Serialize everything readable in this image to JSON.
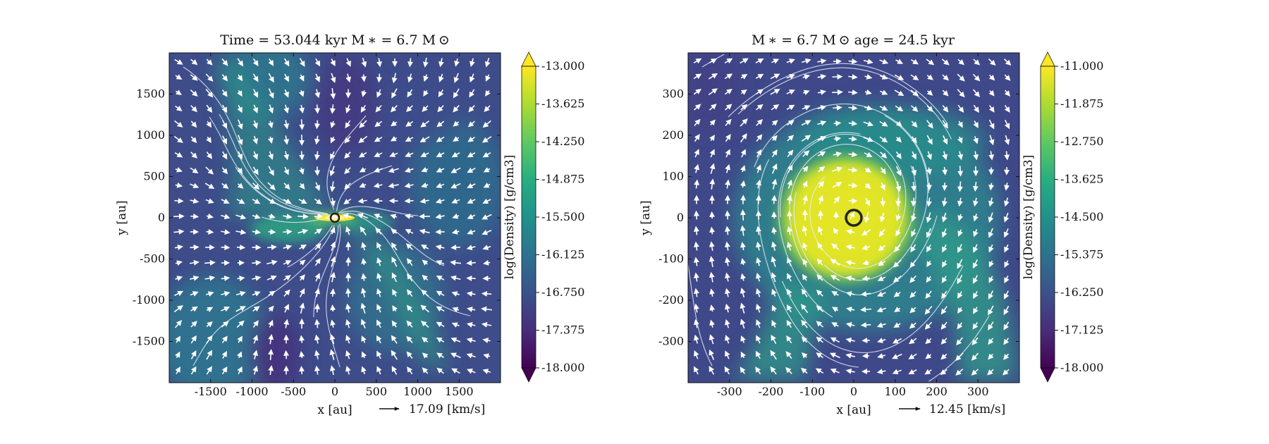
{
  "chart_data": [
    {
      "type": "heatmap",
      "title": "Time = 53.044 kyr    M ∗ = 6.7 M ⊙",
      "xlabel": "x [au]",
      "ylabel": "y [au]",
      "xlim": [
        -2000,
        2000
      ],
      "ylim": [
        -2000,
        2000
      ],
      "xticks": [
        -1500,
        -1000,
        -500,
        0,
        500,
        1000,
        1500
      ],
      "yticks": [
        1500,
        1000,
        500,
        0,
        -500,
        -1000,
        -1500
      ],
      "quiver_key_label": "17.09 [km/s]",
      "colorbar": {
        "label": "log(Density) [g/cm3]",
        "min": -18.0,
        "max": -13.0,
        "ticks": [
          "-13.000",
          "-13.625",
          "-14.250",
          "-14.875",
          "-15.500",
          "-16.125",
          "-16.750",
          "-17.375",
          "-18.000"
        ],
        "colormap": "viridis"
      },
      "star": {
        "x": 0,
        "y": 0
      }
    },
    {
      "type": "heatmap",
      "title": "M ∗ = 6.7 M ⊙           age = 24.5 kyr",
      "xlabel": "x [au]",
      "ylabel": "y [au]",
      "xlim": [
        -400,
        400
      ],
      "ylim": [
        -400,
        400
      ],
      "xticks": [
        -300,
        -200,
        -100,
        0,
        100,
        200,
        300
      ],
      "yticks": [
        300,
        200,
        100,
        0,
        -100,
        -200,
        -300
      ],
      "quiver_key_label": "12.45 [km/s]",
      "colorbar": {
        "label": "log(Density) [g/cm3]",
        "min": -18.0,
        "max": -11.0,
        "ticks": [
          "-11.000",
          "-11.875",
          "-12.750",
          "-13.625",
          "-14.500",
          "-15.375",
          "-16.250",
          "-17.125",
          "-18.000"
        ],
        "colormap": "viridis"
      },
      "star": {
        "x": 0,
        "y": 0
      }
    }
  ]
}
